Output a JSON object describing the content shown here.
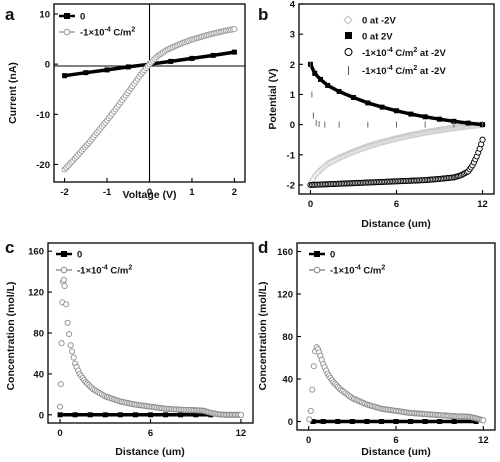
{
  "chart_data": [
    {
      "panel": "a",
      "type": "line",
      "xlabel": "Voltage (V)",
      "ylabel": "Current (nA)",
      "xlim": [
        -2.25,
        2.25
      ],
      "ylim": [
        -23.5,
        12
      ],
      "xticks": [
        -2,
        -1,
        0,
        1,
        2
      ],
      "yticks": [
        -20,
        -10,
        0,
        10
      ],
      "zero_lines": true,
      "legend_position": "top-left",
      "series": [
        {
          "name": "0",
          "marker": "filled-square",
          "color": "#000000",
          "x": [
            -2.0,
            -1.5,
            -1.0,
            -0.5,
            0.0,
            0.5,
            1.0,
            1.5,
            2.0
          ],
          "y": [
            -2.3,
            -1.7,
            -1.15,
            -0.55,
            0.0,
            0.55,
            1.15,
            1.75,
            2.4
          ]
        },
        {
          "name": "-1×10⁻⁴ C/m²",
          "marker": "open-circle",
          "color": "#9a9a9a",
          "x": [
            -2.0,
            -1.8,
            -1.6,
            -1.4,
            -1.2,
            -1.0,
            -0.8,
            -0.6,
            -0.4,
            -0.2,
            0.0,
            0.2,
            0.4,
            0.6,
            0.8,
            1.0,
            1.2,
            1.4,
            1.6,
            1.8,
            2.0
          ],
          "y": [
            -21.0,
            -19.2,
            -17.3,
            -15.4,
            -13.3,
            -11.2,
            -9.0,
            -6.7,
            -4.4,
            -2.0,
            0.0,
            1.7,
            2.8,
            3.6,
            4.3,
            4.9,
            5.4,
            5.9,
            6.3,
            6.7,
            7.0
          ]
        }
      ]
    },
    {
      "panel": "b",
      "type": "line",
      "xlabel": "Distance (um)",
      "ylabel": "Potential (V)",
      "xlim": [
        -0.8,
        12.8
      ],
      "ylim": [
        -2.3,
        4
      ],
      "xticks": [
        0,
        6,
        12
      ],
      "yticks": [
        -2,
        -1,
        0,
        1,
        2,
        3,
        4
      ],
      "legend_position": "top-right",
      "series": [
        {
          "name": "0  at -2V",
          "marker": "open-diamond",
          "color": "#c8c8c8",
          "x": [
            0,
            0.3,
            0.7,
            1.2,
            2,
            3,
            4,
            5,
            6,
            7,
            8,
            9,
            10,
            11,
            12
          ],
          "y": [
            -2.0,
            -1.7,
            -1.5,
            -1.3,
            -1.1,
            -0.9,
            -0.72,
            -0.58,
            -0.46,
            -0.35,
            -0.26,
            -0.18,
            -0.11,
            -0.05,
            0.0
          ]
        },
        {
          "name": "0  at 2V",
          "marker": "filled-square",
          "color": "#000000",
          "x": [
            0,
            0.3,
            0.7,
            1.2,
            2,
            3,
            4,
            5,
            6,
            7,
            8,
            9,
            10,
            11,
            12
          ],
          "y": [
            2.0,
            1.7,
            1.5,
            1.3,
            1.1,
            0.9,
            0.72,
            0.58,
            0.46,
            0.35,
            0.26,
            0.18,
            0.11,
            0.05,
            0.0
          ]
        },
        {
          "name": "-1×10⁻⁴ C/m² at -2V",
          "marker": "open-circle",
          "color": "#000000",
          "x": [
            0,
            1,
            2,
            3,
            4,
            5,
            6,
            7,
            8,
            9,
            10,
            10.5,
            11,
            11.3,
            11.6,
            11.8,
            12
          ],
          "y": [
            -2.0,
            -1.98,
            -1.96,
            -1.94,
            -1.92,
            -1.9,
            -1.88,
            -1.86,
            -1.84,
            -1.8,
            -1.75,
            -1.68,
            -1.55,
            -1.35,
            -1.05,
            -0.8,
            -0.5
          ]
        },
        {
          "name": "-1×10⁻⁴ C/m² at -2V",
          "marker": "vertical-line",
          "color": "#666666",
          "x": [
            0,
            0.1,
            0.2,
            0.4,
            0.6,
            1,
            2,
            4,
            6,
            8,
            10,
            12
          ],
          "y": [
            2.0,
            1.0,
            0.3,
            0.06,
            0.02,
            0.0,
            0.0,
            0.0,
            0.0,
            0.0,
            0.0,
            0.0
          ]
        }
      ]
    },
    {
      "panel": "c",
      "type": "line",
      "xlabel": "Distance (um)",
      "ylabel": "Concentration (mol/L)",
      "xlim": [
        -0.8,
        12.8
      ],
      "ylim": [
        -8,
        168
      ],
      "xticks": [
        0,
        6,
        12
      ],
      "yticks": [
        0,
        40,
        80,
        120,
        160
      ],
      "legend_position": "top-left",
      "series": [
        {
          "name": "0",
          "marker": "filled-square",
          "color": "#000000",
          "x": [
            0,
            1,
            2,
            3,
            4,
            5,
            6,
            7,
            8,
            9,
            10
          ],
          "y": [
            0,
            0,
            0,
            0,
            0,
            0,
            0,
            0,
            0,
            0,
            0
          ]
        },
        {
          "name": "-1×10⁻⁴ C/m²",
          "marker": "open-circle",
          "color": "#8c8c8c",
          "x": [
            0,
            0.05,
            0.1,
            0.15,
            0.2,
            0.25,
            0.3,
            0.4,
            0.5,
            0.7,
            1.0,
            1.3,
            1.7,
            2.2,
            3,
            4,
            5,
            6,
            7,
            8,
            9,
            9.5,
            10,
            10.5,
            11,
            11.5,
            12
          ],
          "y": [
            8,
            30,
            70,
            110,
            130,
            132,
            126,
            108,
            90,
            68,
            50,
            40,
            32,
            25,
            18,
            13,
            10,
            8,
            6,
            5,
            4.5,
            4,
            2,
            0.5,
            0,
            0,
            0
          ]
        }
      ]
    },
    {
      "panel": "d",
      "type": "line",
      "xlabel": "Distance (um)",
      "ylabel": "Concentration (mol/L)",
      "xlim": [
        -0.8,
        12.8
      ],
      "ylim": [
        -8,
        168
      ],
      "xticks": [
        0,
        6,
        12
      ],
      "yticks": [
        0,
        40,
        80,
        120,
        160
      ],
      "legend_position": "top-left",
      "series": [
        {
          "name": "0",
          "marker": "filled-square",
          "color": "#000000",
          "x": [
            0.3,
            1,
            2,
            3,
            4,
            5,
            6,
            7,
            8,
            9,
            10,
            11.5
          ],
          "y": [
            0,
            0,
            0,
            0,
            0,
            0,
            0,
            0,
            0,
            0,
            0,
            0
          ]
        },
        {
          "name": "-1×10⁻⁴ C/m²",
          "marker": "open-circle",
          "color": "#8c8c8c",
          "x": [
            0.05,
            0.15,
            0.25,
            0.35,
            0.45,
            0.55,
            0.65,
            0.8,
            1.0,
            1.3,
            1.7,
            2.2,
            3,
            4,
            5,
            6,
            7,
            8,
            9,
            10,
            11,
            11.5,
            12
          ],
          "y": [
            2,
            10,
            30,
            52,
            66,
            70,
            68,
            62,
            54,
            45,
            37,
            30,
            22,
            16,
            12,
            10,
            8,
            7,
            6,
            5,
            4.5,
            3,
            1
          ]
        }
      ]
    }
  ]
}
